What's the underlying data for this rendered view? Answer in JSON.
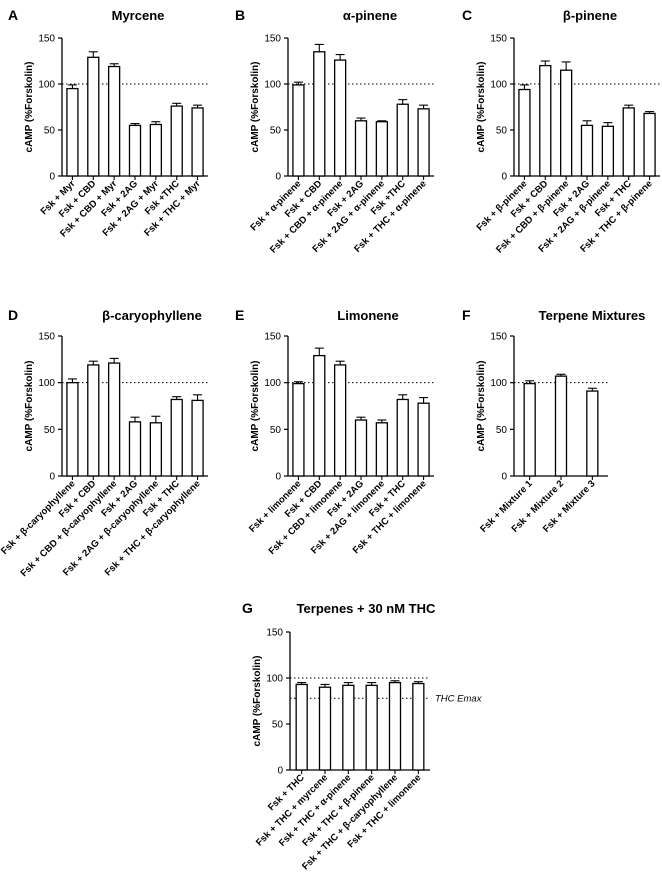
{
  "chart_data": [
    {
      "type": "bar",
      "panel": "A",
      "title": "Myrcene",
      "ylabel": "cAMP (%Forskolin)",
      "ylim": [
        0,
        150
      ],
      "yticks": [
        "0",
        "50",
        "100",
        "150"
      ],
      "reference_line": 100,
      "categories": [
        "Fsk + Myr",
        "Fsk + CBD",
        "Fsk + CBD + Myr",
        "Fsk + 2AG",
        "Fsk + 2AG + Myr",
        "Fsk +THC",
        "Fsk + THC + Myr"
      ],
      "values": [
        95,
        129,
        119,
        55,
        56,
        76,
        74
      ],
      "errors": [
        4,
        6,
        3,
        2,
        3,
        3,
        3
      ]
    },
    {
      "type": "bar",
      "panel": "B",
      "title": "α-pinene",
      "ylabel": "cAMP (%Forskolin)",
      "ylim": [
        0,
        150
      ],
      "yticks": [
        "0",
        "50",
        "100",
        "150"
      ],
      "reference_line": 100,
      "categories": [
        "Fsk + α-pinene",
        "Fsk + CBD",
        "Fsk + CBD + α-pinene",
        "Fsk + 2AG",
        "Fsk + 2AG + α-pinene",
        "Fsk +THC",
        "Fsk + THC + α-pinene"
      ],
      "values": [
        99,
        135,
        126,
        60,
        59,
        78,
        73
      ],
      "errors": [
        3,
        8,
        6,
        3,
        1,
        5,
        4
      ]
    },
    {
      "type": "bar",
      "panel": "C",
      "title": "β-pinene",
      "ylabel": "cAMP (%Forskolin)",
      "ylim": [
        0,
        150
      ],
      "yticks": [
        "0",
        "50",
        "100",
        "150"
      ],
      "reference_line": 100,
      "categories": [
        "Fsk + β-pinene",
        "Fsk + CBD",
        "Fsk + CBD + β-pinene",
        "Fsk + 2AG",
        "Fsk + 2AG + β-pinene",
        "Fsk + THC",
        "Fsk + THC + β-pinene"
      ],
      "values": [
        94,
        120,
        115,
        55,
        54,
        74,
        68
      ],
      "errors": [
        5,
        5,
        9,
        5,
        4,
        3,
        2
      ]
    },
    {
      "type": "bar",
      "panel": "D",
      "title": "β-caryophyllene",
      "ylabel": "cAMP (%Forskolin)",
      "ylim": [
        0,
        150
      ],
      "yticks": [
        "0",
        "50",
        "100",
        "150"
      ],
      "reference_line": 100,
      "categories": [
        "Fsk + β-caryophyllene",
        "Fsk + CBD",
        "Fsk + CBD + β-caryophyllene",
        "Fsk + 2AG",
        "Fsk + 2AG + β-caryophyllene",
        "Fsk + THC",
        "Fsk + THC + β-caryophyllene"
      ],
      "values": [
        100,
        119,
        121,
        58,
        57,
        82,
        81
      ],
      "errors": [
        4,
        4,
        5,
        5,
        7,
        3,
        6
      ]
    },
    {
      "type": "bar",
      "panel": "E",
      "title": "Limonene",
      "ylabel": "cAMP (%Forskolin)",
      "ylim": [
        0,
        150
      ],
      "yticks": [
        "0",
        "50",
        "100",
        "150"
      ],
      "reference_line": 100,
      "categories": [
        "Fsk + limonene",
        "Fsk + CBD",
        "Fsk + CBD + limonene",
        "Fsk + 2AG",
        "Fsk + 2AG + limonene",
        "Fsk + THC",
        "Fsk + THC + limonene"
      ],
      "values": [
        99,
        129,
        119,
        60,
        57,
        82,
        78
      ],
      "errors": [
        2,
        8,
        4,
        3,
        3,
        5,
        6
      ]
    },
    {
      "type": "bar",
      "panel": "F",
      "title": "Terpene Mixtures",
      "ylabel": "cAMP (%Forskolin)",
      "ylim": [
        0,
        150
      ],
      "yticks": [
        "0",
        "50",
        "100",
        "150"
      ],
      "reference_line": 100,
      "categories": [
        "Fsk + Mixture 1",
        "Fsk + Mixture 2",
        "Fsk + Mixture 3"
      ],
      "values": [
        99,
        107,
        91
      ],
      "errors": [
        3,
        2,
        3
      ]
    },
    {
      "type": "bar",
      "panel": "G",
      "title": "Terpenes + 30 nM THC",
      "ylabel": "cAMP (%Forskolin)",
      "ylim": [
        0,
        150
      ],
      "yticks": [
        "0",
        "50",
        "100",
        "150"
      ],
      "reference_line": 100,
      "second_reference_line": 78,
      "second_reference_label": "THC Emax",
      "categories": [
        "Fsk + THC",
        "Fsk + THC + myrcene",
        "Fsk + THC + α-pinene",
        "Fsk + THC + β-pinene",
        "Fsk + THC + β-caryophyllene",
        "Fsk + THC + limonene"
      ],
      "values": [
        93,
        90,
        92,
        92,
        95,
        94
      ],
      "errors": [
        2,
        3,
        3,
        3,
        2,
        2
      ]
    }
  ]
}
